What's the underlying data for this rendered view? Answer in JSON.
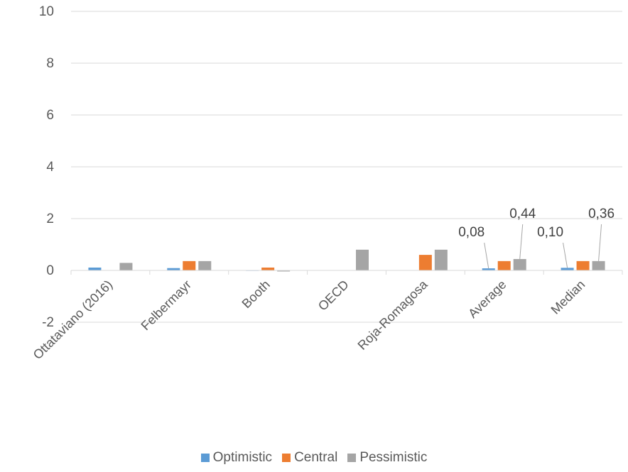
{
  "chart_data": {
    "type": "bar",
    "categories": [
      "Ottataviano (2016)",
      "Felbermayr",
      "Booth",
      "OECD",
      "Roja-Romagosa",
      "Average",
      "Median"
    ],
    "series": [
      {
        "name": "Optimistic",
        "color": "#5B9BD5",
        "values": [
          0.11,
          0.09,
          0.01,
          0,
          0,
          0.08,
          0.1
        ]
      },
      {
        "name": "Central",
        "color": "#ED7D31",
        "values": [
          0,
          0.36,
          0.11,
          0,
          0.6,
          0.36,
          0.36
        ]
      },
      {
        "name": "Pessimistic",
        "color": "#A5A5A5",
        "values": [
          0.29,
          0.36,
          -0.04,
          0.8,
          0.8,
          0.44,
          0.36
        ]
      }
    ],
    "yticks": [
      "-2",
      "0",
      "2",
      "4",
      "6",
      "8",
      "10"
    ],
    "ylim": [
      -2,
      10
    ],
    "grid": true,
    "legend_position": "bottom",
    "data_labels": [
      {
        "category": "Average",
        "series": "Optimistic",
        "text": "0,08"
      },
      {
        "category": "Average",
        "series": "Pessimistic",
        "text": "0,44"
      },
      {
        "category": "Median",
        "series": "Optimistic",
        "text": "0,10"
      },
      {
        "category": "Median",
        "series": "Pessimistic",
        "text": "0,36"
      }
    ]
  }
}
